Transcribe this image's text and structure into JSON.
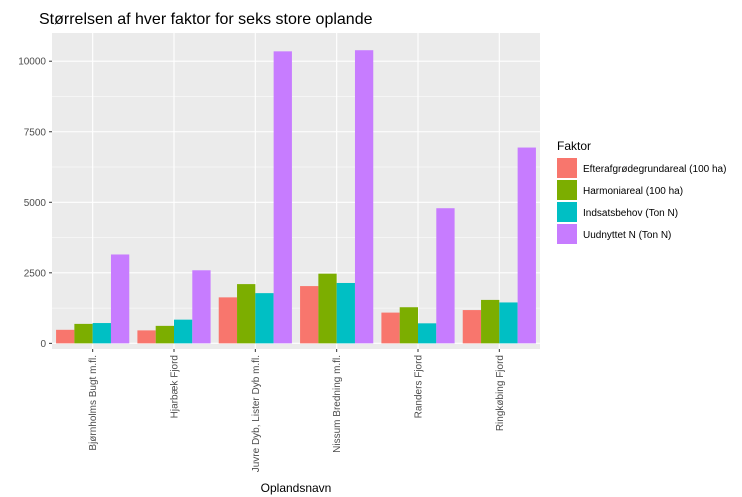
{
  "chart_data": {
    "type": "bar",
    "title": "Størrelsen af hver faktor for seks store oplande",
    "xlabel": "Oplandsnavn",
    "ylabel": "",
    "ylim": [
      -200,
      11000
    ],
    "yticks": [
      0,
      2500,
      5000,
      7500,
      10000
    ],
    "ytick_labels": [
      "0",
      "2500",
      "5000",
      "7500",
      "10000"
    ],
    "categories": [
      "Bjørnholms Bugt m.fl.",
      "Hjarbæk Fjord",
      "Juvre Dyb, Lister Dyb m.fl.",
      "Nissum Bredning m.fl.",
      "Randers Fjord",
      "Ringkøbing Fjord"
    ],
    "legend_title": "Faktor",
    "legend_position": "right",
    "grid": true,
    "series": [
      {
        "name": "Efterafgrødegrundareal (100 ha)",
        "color": "#f8766d",
        "values": [
          480,
          460,
          1630,
          2030,
          1090,
          1180
        ]
      },
      {
        "name": "Harmoniareal (100 ha)",
        "color": "#7cae00",
        "values": [
          690,
          620,
          2100,
          2470,
          1280,
          1540
        ]
      },
      {
        "name": "Indsatsbehov (Ton N)",
        "color": "#00bfc4",
        "values": [
          720,
          840,
          1780,
          2140,
          710,
          1450
        ]
      },
      {
        "name": "Uudnyttet N (Ton N)",
        "color": "#c77cff",
        "values": [
          3150,
          2590,
          10350,
          10390,
          4790,
          6940
        ]
      }
    ]
  }
}
